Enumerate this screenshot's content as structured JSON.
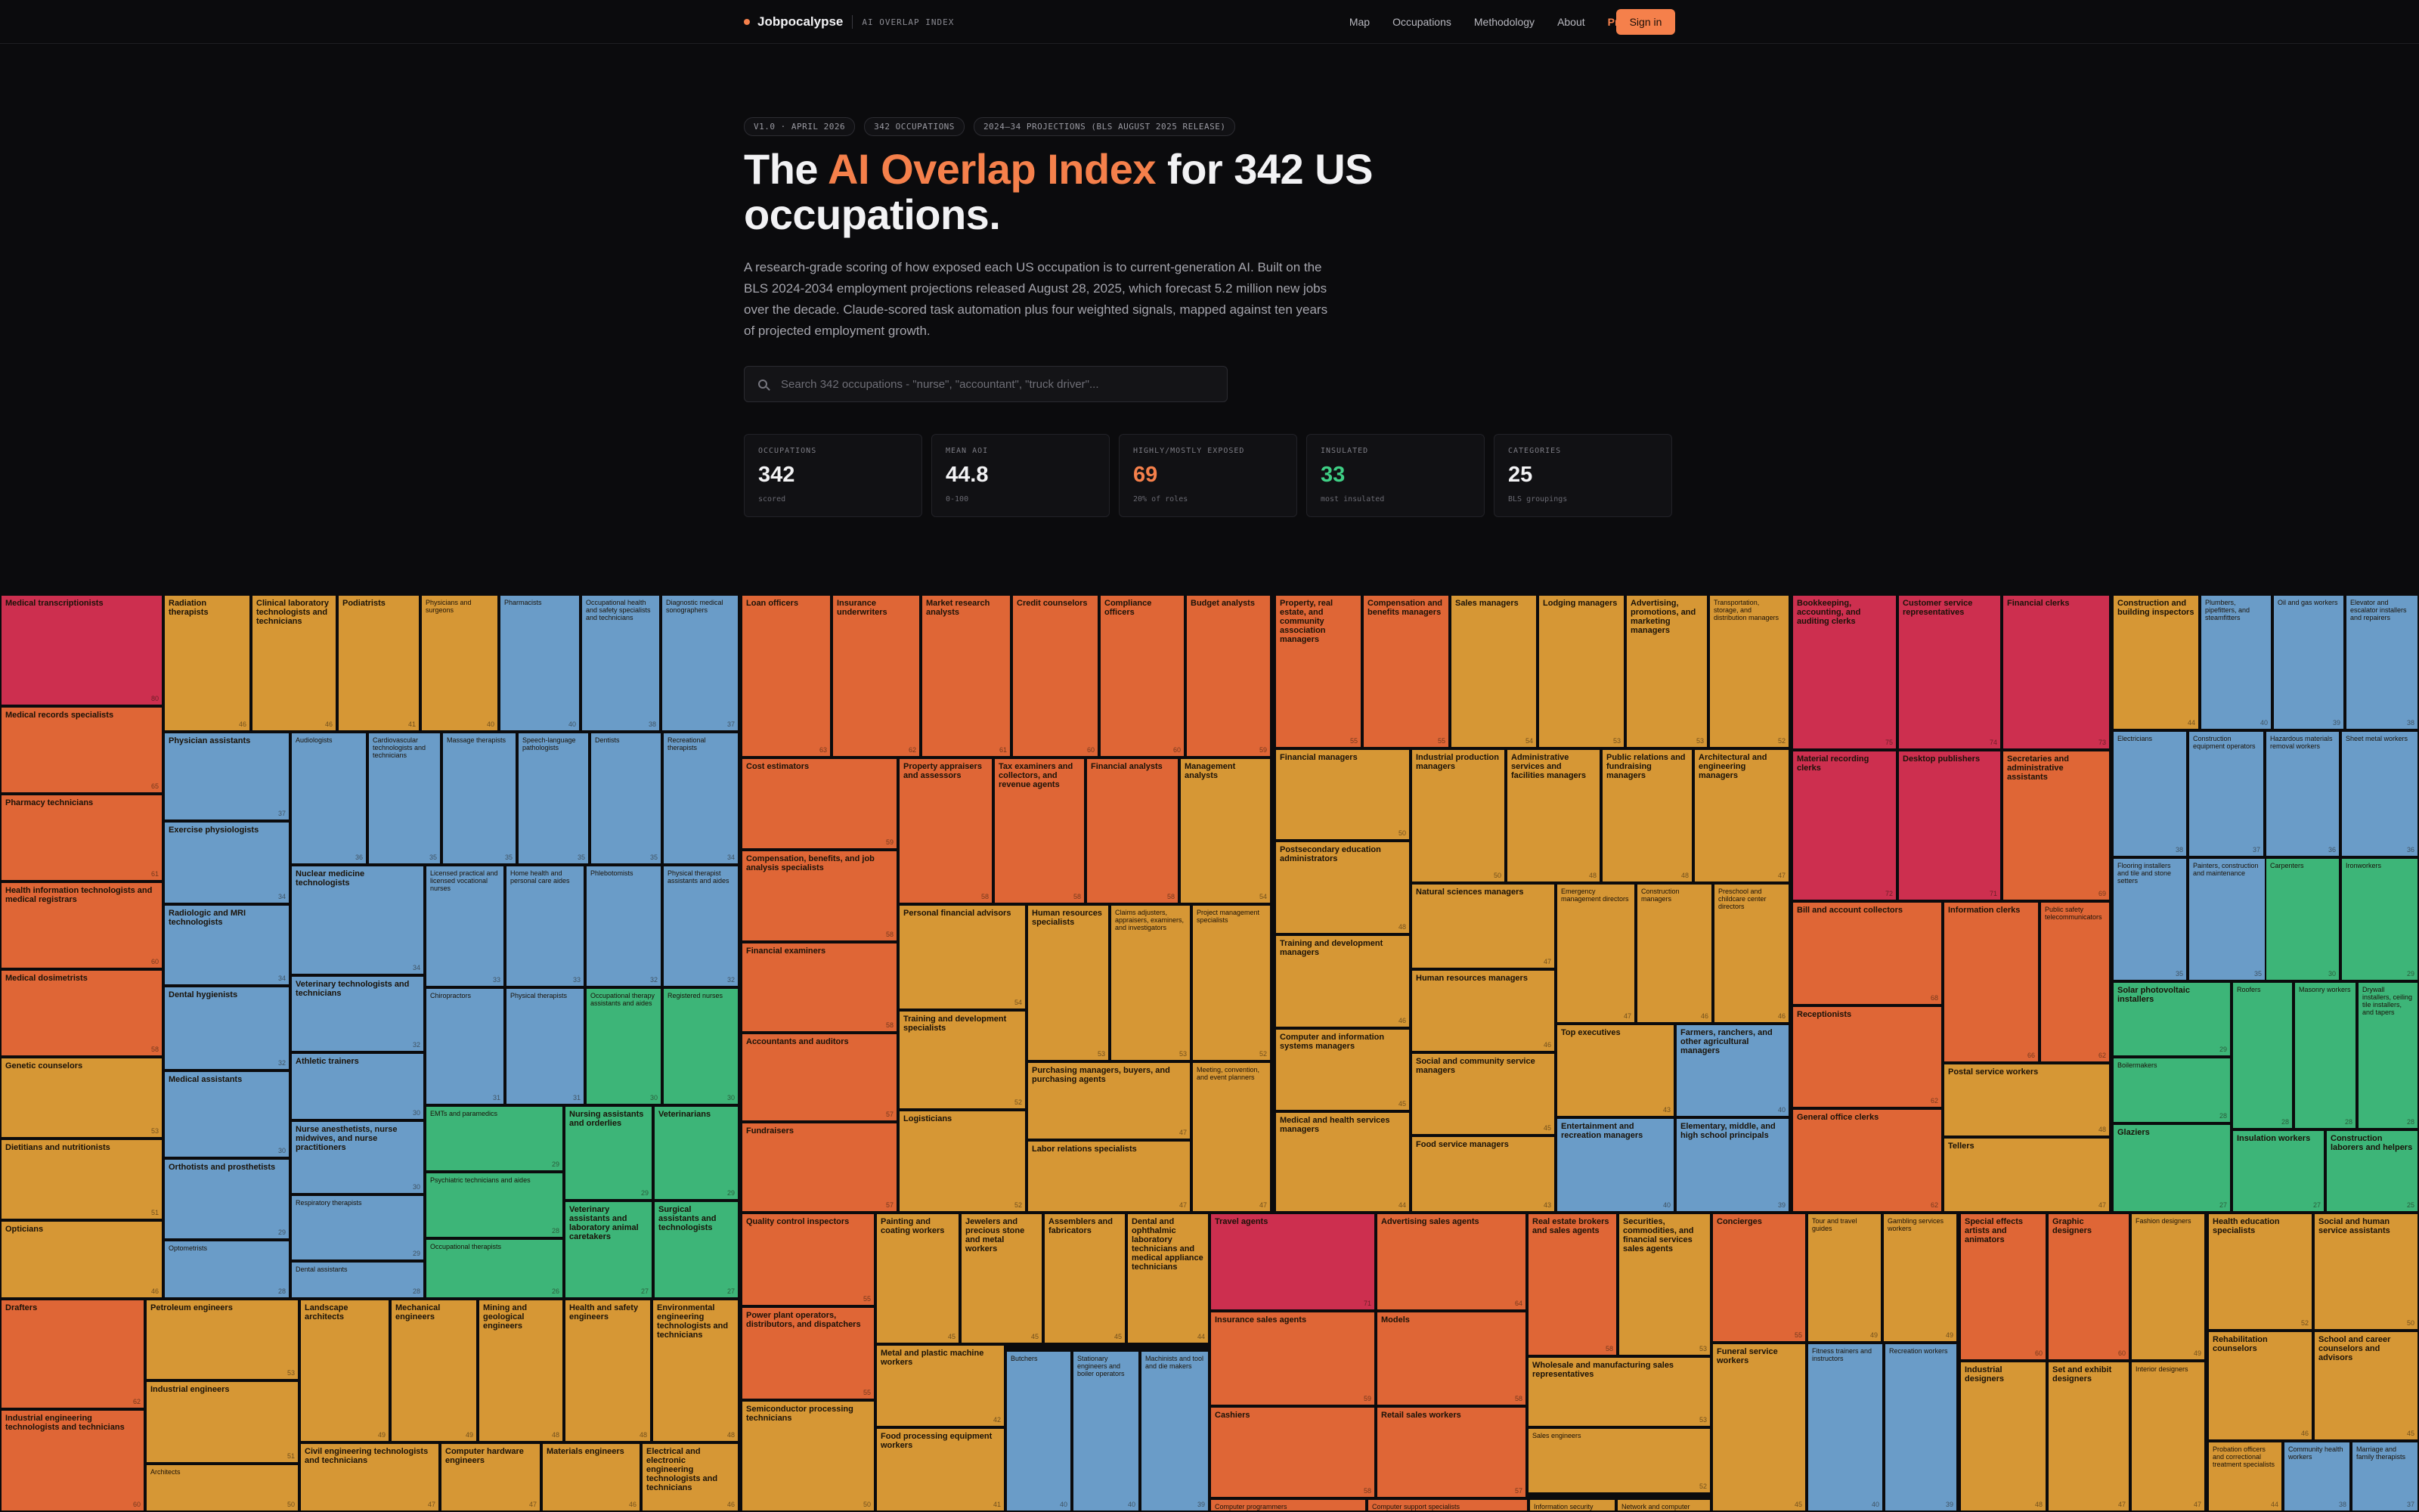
{
  "nav": {
    "brand": "Jobpocalypse",
    "tagline": "AI OVERLAP INDEX",
    "links": [
      {
        "label": "Map"
      },
      {
        "label": "Occupations"
      },
      {
        "label": "Methodology"
      },
      {
        "label": "About"
      },
      {
        "label": "Pro"
      }
    ],
    "signin_label": "Sign in",
    "accent_color": "#f5804b"
  },
  "hero": {
    "pills": [
      "V1.0 · APRIL 2026",
      "342 OCCUPATIONS",
      "2024–34 PROJECTIONS (BLS AUGUST 2025 RELEASE)"
    ],
    "headline_pre": "The ",
    "headline_accent": "AI Overlap Index",
    "headline_post": " for 342 US occupations.",
    "lede": "A research-grade scoring of how exposed each US occupation is to current-generation AI. Built on the BLS 2024-2034 employment projections released August 28, 2025, which forecast 5.2 million new jobs over the decade. Claude-scored task automation plus four weighted signals, mapped against ten years of projected employment growth."
  },
  "search": {
    "placeholder": "Search 342 occupations - \"nurse\", \"accountant\", \"truck driver\"..."
  },
  "stats": [
    {
      "label": "OCCUPATIONS",
      "value": "342",
      "sub": "scored",
      "tone": "default"
    },
    {
      "label": "MEAN AOI",
      "value": "44.8",
      "sub": "0-100",
      "tone": "default"
    },
    {
      "label": "HIGHLY/MOSTLY EXPOSED",
      "value": "69",
      "sub": "20% of roles",
      "tone": "orange"
    },
    {
      "label": "INSULATED",
      "value": "33",
      "sub": "most insulated",
      "tone": "green"
    },
    {
      "label": "CATEGORIES",
      "value": "25",
      "sub": "BLS groupings",
      "tone": "default"
    }
  ],
  "palette": {
    "red": "#cd2f4f",
    "orange": "#df6636",
    "amber": "#d69735",
    "blue": "#6a9cc8",
    "green": "#3db578"
  },
  "treemap": [
    {
      "n": "Medical transcriptionists",
      "s": "80",
      "c": "red"
    },
    {
      "n": "Medical records specialists",
      "s": "65",
      "c": "orange"
    },
    {
      "n": "Pharmacy technicians",
      "s": "61",
      "c": "orange"
    },
    {
      "n": "Health information technologists and medical registrars",
      "s": "60",
      "c": "orange"
    },
    {
      "n": "Medical dosimetrists",
      "s": "58",
      "c": "orange"
    },
    {
      "n": "Genetic counselors",
      "s": "53",
      "c": "amber"
    },
    {
      "n": "Dietitians and nutritionists",
      "s": "51",
      "c": "amber"
    },
    {
      "n": "Opticians",
      "s": "46",
      "c": "amber"
    },
    {
      "n": "Radiation therapists",
      "s": "46",
      "c": "amber"
    },
    {
      "n": "Clinical laboratory technologists and technicians",
      "s": "46",
      "c": "amber"
    },
    {
      "n": "Podiatrists",
      "s": "41",
      "c": "amber"
    },
    {
      "n": "Physicians and surgeons",
      "s": "40",
      "c": "amber"
    },
    {
      "n": "Pharmacists",
      "s": "40",
      "c": "blue"
    },
    {
      "n": "Occupational health and safety specialists and technicians",
      "s": "38",
      "c": "blue"
    },
    {
      "n": "Diagnostic medical sonographers",
      "s": "37",
      "c": "blue"
    },
    {
      "n": "Physician assistants",
      "s": "37",
      "c": "blue"
    },
    {
      "n": "Audiologists",
      "s": "36",
      "c": "blue"
    },
    {
      "n": "Cardiovascular technologists and technicians",
      "s": "35",
      "c": "blue"
    },
    {
      "n": "Massage therapists",
      "s": "35",
      "c": "blue"
    },
    {
      "n": "Speech-language pathologists",
      "s": "35",
      "c": "blue"
    },
    {
      "n": "Dentists",
      "s": "35",
      "c": "blue"
    },
    {
      "n": "Recreational therapists",
      "s": "34",
      "c": "blue"
    },
    {
      "n": "Exercise physiologists",
      "s": "34",
      "c": "blue"
    },
    {
      "n": "Radiologic and MRI technologists",
      "s": "34",
      "c": "blue"
    },
    {
      "n": "Nuclear medicine technologists",
      "s": "34",
      "c": "blue"
    },
    {
      "n": "Licensed practical and licensed vocational nurses",
      "s": "33",
      "c": "blue"
    },
    {
      "n": "Home health and personal care aides",
      "s": "33",
      "c": "blue"
    },
    {
      "n": "Phlebotomists",
      "s": "32",
      "c": "blue"
    },
    {
      "n": "Physical therapist assistants and aides",
      "s": "32",
      "c": "blue"
    },
    {
      "n": "Dental hygienists",
      "s": "32",
      "c": "blue"
    },
    {
      "n": "Veterinary technologists and technicians",
      "s": "32",
      "c": "blue"
    },
    {
      "n": "Chiropractors",
      "s": "31",
      "c": "blue"
    },
    {
      "n": "Physical therapists",
      "s": "31",
      "c": "blue"
    },
    {
      "n": "Occupational therapy assistants and aides",
      "s": "30",
      "c": "green"
    },
    {
      "n": "Registered nurses",
      "s": "30",
      "c": "green"
    },
    {
      "n": "Athletic trainers",
      "s": "30",
      "c": "blue"
    },
    {
      "n": "Medical assistants",
      "s": "30",
      "c": "blue"
    },
    {
      "n": "Nurse anesthetists, nurse midwives, and nurse practitioners",
      "s": "30",
      "c": "blue"
    },
    {
      "n": "EMTs and paramedics",
      "s": "29",
      "c": "green"
    },
    {
      "n": "Nursing assistants and orderlies",
      "s": "29",
      "c": "green"
    },
    {
      "n": "Veterinarians",
      "s": "29",
      "c": "green"
    },
    {
      "n": "Orthotists and prosthetists",
      "s": "29",
      "c": "blue"
    },
    {
      "n": "Respiratory therapists",
      "s": "29",
      "c": "blue"
    },
    {
      "n": "Psychiatric technicians and aides",
      "s": "28",
      "c": "green"
    },
    {
      "n": "Veterinary assistants and laboratory animal caretakers",
      "s": "27",
      "c": "green"
    },
    {
      "n": "Surgical assistants and technologists",
      "s": "27",
      "c": "green"
    },
    {
      "n": "Optometrists",
      "s": "28",
      "c": "blue"
    },
    {
      "n": "Dental assistants",
      "s": "28",
      "c": "blue"
    },
    {
      "n": "Occupational therapists",
      "s": "26",
      "c": "green"
    },
    {
      "n": "Drafters",
      "s": "62",
      "c": "orange"
    },
    {
      "n": "Industrial engineering technologists and technicians",
      "s": "60",
      "c": "orange"
    },
    {
      "n": "Petroleum engineers",
      "s": "53",
      "c": "amber"
    },
    {
      "n": "Industrial engineers",
      "s": "51",
      "c": "amber"
    },
    {
      "n": "Architects",
      "s": "50",
      "c": "amber"
    },
    {
      "n": "Landscape architects",
      "s": "49",
      "c": "amber"
    },
    {
      "n": "Mechanical engineers",
      "s": "49",
      "c": "amber"
    },
    {
      "n": "Mining and geological engineers",
      "s": "48",
      "c": "amber"
    },
    {
      "n": "Health and safety engineers",
      "s": "48",
      "c": "amber"
    },
    {
      "n": "Environmental engineering technologists and technicians",
      "s": "48",
      "c": "amber"
    },
    {
      "n": "Civil engineering technologists and technicians",
      "s": "47",
      "c": "amber"
    },
    {
      "n": "Computer hardware engineers",
      "s": "47",
      "c": "amber"
    },
    {
      "n": "Materials engineers",
      "s": "46",
      "c": "amber"
    },
    {
      "n": "Electrical and electronic engineering technologists and technicians",
      "s": "46",
      "c": "amber"
    },
    {
      "n": "Loan officers",
      "s": "63",
      "c": "orange"
    },
    {
      "n": "Insurance underwriters",
      "s": "62",
      "c": "orange"
    },
    {
      "n": "Market research analysts",
      "s": "61",
      "c": "orange"
    },
    {
      "n": "Credit counselors",
      "s": "60",
      "c": "orange"
    },
    {
      "n": "Compliance officers",
      "s": "60",
      "c": "orange"
    },
    {
      "n": "Budget analysts",
      "s": "59",
      "c": "orange"
    },
    {
      "n": "Cost estimators",
      "s": "59",
      "c": "orange"
    },
    {
      "n": "Property appraisers and assessors",
      "s": "58",
      "c": "orange"
    },
    {
      "n": "Tax examiners and collectors, and revenue agents",
      "s": "58",
      "c": "orange"
    },
    {
      "n": "Financial analysts",
      "s": "58",
      "c": "orange"
    },
    {
      "n": "Management analysts",
      "s": "54",
      "c": "amber"
    },
    {
      "n": "Compensation, benefits, and job analysis specialists",
      "s": "58",
      "c": "orange"
    },
    {
      "n": "Financial examiners",
      "s": "58",
      "c": "orange"
    },
    {
      "n": "Accountants and auditors",
      "s": "57",
      "c": "orange"
    },
    {
      "n": "Fundraisers",
      "s": "57",
      "c": "orange"
    },
    {
      "n": "Personal financial advisors",
      "s": "54",
      "c": "amber"
    },
    {
      "n": "Human resources specialists",
      "s": "53",
      "c": "amber"
    },
    {
      "n": "Claims adjusters, appraisers, examiners, and investigators",
      "s": "53",
      "c": "amber"
    },
    {
      "n": "Project management specialists",
      "s": "52",
      "c": "amber"
    },
    {
      "n": "Training and development specialists",
      "s": "52",
      "c": "amber"
    },
    {
      "n": "Purchasing managers, buyers, and purchasing agents",
      "s": "47",
      "c": "amber"
    },
    {
      "n": "Meeting, convention, and event planners",
      "s": "47",
      "c": "amber"
    },
    {
      "n": "Logisticians",
      "s": "52",
      "c": "amber"
    },
    {
      "n": "Labor relations specialists",
      "s": "47",
      "c": "amber"
    },
    {
      "n": "Property, real estate, and community association managers",
      "s": "55",
      "c": "orange"
    },
    {
      "n": "Compensation and benefits managers",
      "s": "55",
      "c": "orange"
    },
    {
      "n": "Sales managers",
      "s": "54",
      "c": "amber"
    },
    {
      "n": "Lodging managers",
      "s": "53",
      "c": "amber"
    },
    {
      "n": "Advertising, promotions, and marketing managers",
      "s": "53",
      "c": "amber"
    },
    {
      "n": "Transportation, storage, and distribution managers",
      "s": "52",
      "c": "amber"
    },
    {
      "n": "Financial managers",
      "s": "50",
      "c": "amber"
    },
    {
      "n": "Industrial production managers",
      "s": "50",
      "c": "amber"
    },
    {
      "n": "Administrative services and facilities managers",
      "s": "48",
      "c": "amber"
    },
    {
      "n": "Public relations and fundraising managers",
      "s": "48",
      "c": "amber"
    },
    {
      "n": "Architectural and engineering managers",
      "s": "47",
      "c": "amber"
    },
    {
      "n": "Postsecondary education administrators",
      "s": "48",
      "c": "amber"
    },
    {
      "n": "Natural sciences managers",
      "s": "47",
      "c": "amber"
    },
    {
      "n": "Emergency management directors",
      "s": "47",
      "c": "amber"
    },
    {
      "n": "Construction managers",
      "s": "46",
      "c": "amber"
    },
    {
      "n": "Preschool and childcare center directors",
      "s": "46",
      "c": "amber"
    },
    {
      "n": "Training and development managers",
      "s": "46",
      "c": "amber"
    },
    {
      "n": "Human resources managers",
      "s": "46",
      "c": "amber"
    },
    {
      "n": "Computer and information systems managers",
      "s": "45",
      "c": "amber"
    },
    {
      "n": "Social and community service managers",
      "s": "45",
      "c": "amber"
    },
    {
      "n": "Top executives",
      "s": "43",
      "c": "amber"
    },
    {
      "n": "Farmers, ranchers, and other agricultural managers",
      "s": "40",
      "c": "blue"
    },
    {
      "n": "Medical and health services managers",
      "s": "44",
      "c": "amber"
    },
    {
      "n": "Food service managers",
      "s": "43",
      "c": "amber"
    },
    {
      "n": "Entertainment and recreation managers",
      "s": "40",
      "c": "blue"
    },
    {
      "n": "Elementary, middle, and high school principals",
      "s": "39",
      "c": "blue"
    },
    {
      "n": "Bookkeeping, accounting, and auditing clerks",
      "s": "75",
      "c": "red"
    },
    {
      "n": "Customer service representatives",
      "s": "74",
      "c": "red"
    },
    {
      "n": "Financial clerks",
      "s": "73",
      "c": "red"
    },
    {
      "n": "Material recording clerks",
      "s": "72",
      "c": "red"
    },
    {
      "n": "Desktop publishers",
      "s": "71",
      "c": "red"
    },
    {
      "n": "Secretaries and administrative assistants",
      "s": "69",
      "c": "orange"
    },
    {
      "n": "Bill and account collectors",
      "s": "68",
      "c": "orange"
    },
    {
      "n": "Information clerks",
      "s": "66",
      "c": "orange"
    },
    {
      "n": "Public safety telecommunicators",
      "s": "62",
      "c": "orange"
    },
    {
      "n": "Receptionists",
      "s": "62",
      "c": "orange"
    },
    {
      "n": "Postal service workers",
      "s": "48",
      "c": "amber"
    },
    {
      "n": "General office clerks",
      "s": "62",
      "c": "orange"
    },
    {
      "n": "Tellers",
      "s": "47",
      "c": "amber"
    },
    {
      "n": "Construction and building inspectors",
      "s": "44",
      "c": "amber"
    },
    {
      "n": "Plumbers, pipefitters, and steamfitters",
      "s": "40",
      "c": "blue"
    },
    {
      "n": "Oil and gas workers",
      "s": "39",
      "c": "blue"
    },
    {
      "n": "Elevator and escalator installers and repairers",
      "s": "38",
      "c": "blue"
    },
    {
      "n": "Electricians",
      "s": "38",
      "c": "blue"
    },
    {
      "n": "Construction equipment operators",
      "s": "37",
      "c": "blue"
    },
    {
      "n": "Hazardous materials removal workers",
      "s": "36",
      "c": "blue"
    },
    {
      "n": "Sheet metal workers",
      "s": "36",
      "c": "blue"
    },
    {
      "n": "Flooring installers and tile and stone setters",
      "s": "35",
      "c": "blue"
    },
    {
      "n": "Painters, construction and maintenance",
      "s": "35",
      "c": "blue"
    },
    {
      "n": "Carpenters",
      "s": "30",
      "c": "green"
    },
    {
      "n": "Ironworkers",
      "s": "29",
      "c": "green"
    },
    {
      "n": "Solar photovoltaic installers",
      "s": "29",
      "c": "green"
    },
    {
      "n": "Roofers",
      "s": "28",
      "c": "green"
    },
    {
      "n": "Masonry workers",
      "s": "28",
      "c": "green"
    },
    {
      "n": "Drywall installers, ceiling tile installers, and tapers",
      "s": "28",
      "c": "green"
    },
    {
      "n": "Boilermakers",
      "s": "28",
      "c": "green"
    },
    {
      "n": "Glaziers",
      "s": "27",
      "c": "green"
    },
    {
      "n": "Insulation workers",
      "s": "27",
      "c": "green"
    },
    {
      "n": "Construction laborers and helpers",
      "s": "25",
      "c": "green"
    },
    {
      "n": "Quality control inspectors",
      "s": "55",
      "c": "orange"
    },
    {
      "n": "Power plant operators, distributors, and dispatchers",
      "s": "55",
      "c": "orange"
    },
    {
      "n": "Semiconductor processing technicians",
      "s": "50",
      "c": "amber"
    },
    {
      "n": "Painting and coating workers",
      "s": "45",
      "c": "amber"
    },
    {
      "n": "Jewelers and precious stone and metal workers",
      "s": "45",
      "c": "amber"
    },
    {
      "n": "Assemblers and fabricators",
      "s": "45",
      "c": "amber"
    },
    {
      "n": "Dental and ophthalmic laboratory technicians and medical appliance technicians",
      "s": "44",
      "c": "amber"
    },
    {
      "n": "Metal and plastic machine workers",
      "s": "42",
      "c": "amber"
    },
    {
      "n": "Butchers",
      "s": "40",
      "c": "blue"
    },
    {
      "n": "Stationary engineers and boiler operators",
      "s": "40",
      "c": "blue"
    },
    {
      "n": "Machinists and tool and die makers",
      "s": "39",
      "c": "blue"
    },
    {
      "n": "Food processing equipment workers",
      "s": "41",
      "c": "amber"
    },
    {
      "n": "Travel agents",
      "s": "71",
      "c": "red"
    },
    {
      "n": "Advertising sales agents",
      "s": "64",
      "c": "orange"
    },
    {
      "n": "Real estate brokers and sales agents",
      "s": "58",
      "c": "orange"
    },
    {
      "n": "Securities, commodities, and financial services sales agents",
      "s": "53",
      "c": "amber"
    },
    {
      "n": "Insurance sales agents",
      "s": "59",
      "c": "orange"
    },
    {
      "n": "Models",
      "s": "58",
      "c": "orange"
    },
    {
      "n": "Wholesale and manufacturing sales representatives",
      "s": "53",
      "c": "amber"
    },
    {
      "n": "Cashiers",
      "s": "58",
      "c": "orange"
    },
    {
      "n": "Retail sales workers",
      "s": "57",
      "c": "orange"
    },
    {
      "n": "Sales engineers",
      "s": "52",
      "c": "amber"
    },
    {
      "n": "Computer programmers",
      "s": "",
      "c": "orange"
    },
    {
      "n": "Computer support specialists",
      "s": "",
      "c": "orange"
    },
    {
      "n": "Information security analysts",
      "s": "",
      "c": "amber"
    },
    {
      "n": "Network and computer systems administrators",
      "s": "",
      "c": "amber"
    },
    {
      "n": "Concierges",
      "s": "55",
      "c": "orange"
    },
    {
      "n": "Tour and travel guides",
      "s": "49",
      "c": "amber"
    },
    {
      "n": "Gambling services workers",
      "s": "49",
      "c": "amber"
    },
    {
      "n": "Funeral service workers",
      "s": "45",
      "c": "amber"
    },
    {
      "n": "Fitness trainers and instructors",
      "s": "40",
      "c": "blue"
    },
    {
      "n": "Recreation workers",
      "s": "39",
      "c": "blue"
    },
    {
      "n": "Special effects artists and animators",
      "s": "60",
      "c": "orange"
    },
    {
      "n": "Graphic designers",
      "s": "60",
      "c": "orange"
    },
    {
      "n": "Fashion designers",
      "s": "49",
      "c": "amber"
    },
    {
      "n": "Industrial designers",
      "s": "48",
      "c": "amber"
    },
    {
      "n": "Set and exhibit designers",
      "s": "47",
      "c": "amber"
    },
    {
      "n": "Interior designers",
      "s": "47",
      "c": "amber"
    },
    {
      "n": "Health education specialists",
      "s": "52",
      "c": "amber"
    },
    {
      "n": "Social and human service assistants",
      "s": "50",
      "c": "amber"
    },
    {
      "n": "Rehabilitation counselors",
      "s": "46",
      "c": "amber"
    },
    {
      "n": "School and career counselors and advisors",
      "s": "45",
      "c": "amber"
    },
    {
      "n": "Probation officers and correctional treatment specialists",
      "s": "44",
      "c": "amber"
    },
    {
      "n": "Community health workers",
      "s": "38",
      "c": "blue"
    },
    {
      "n": "Marriage and family therapists",
      "s": "37",
      "c": "blue"
    }
  ]
}
